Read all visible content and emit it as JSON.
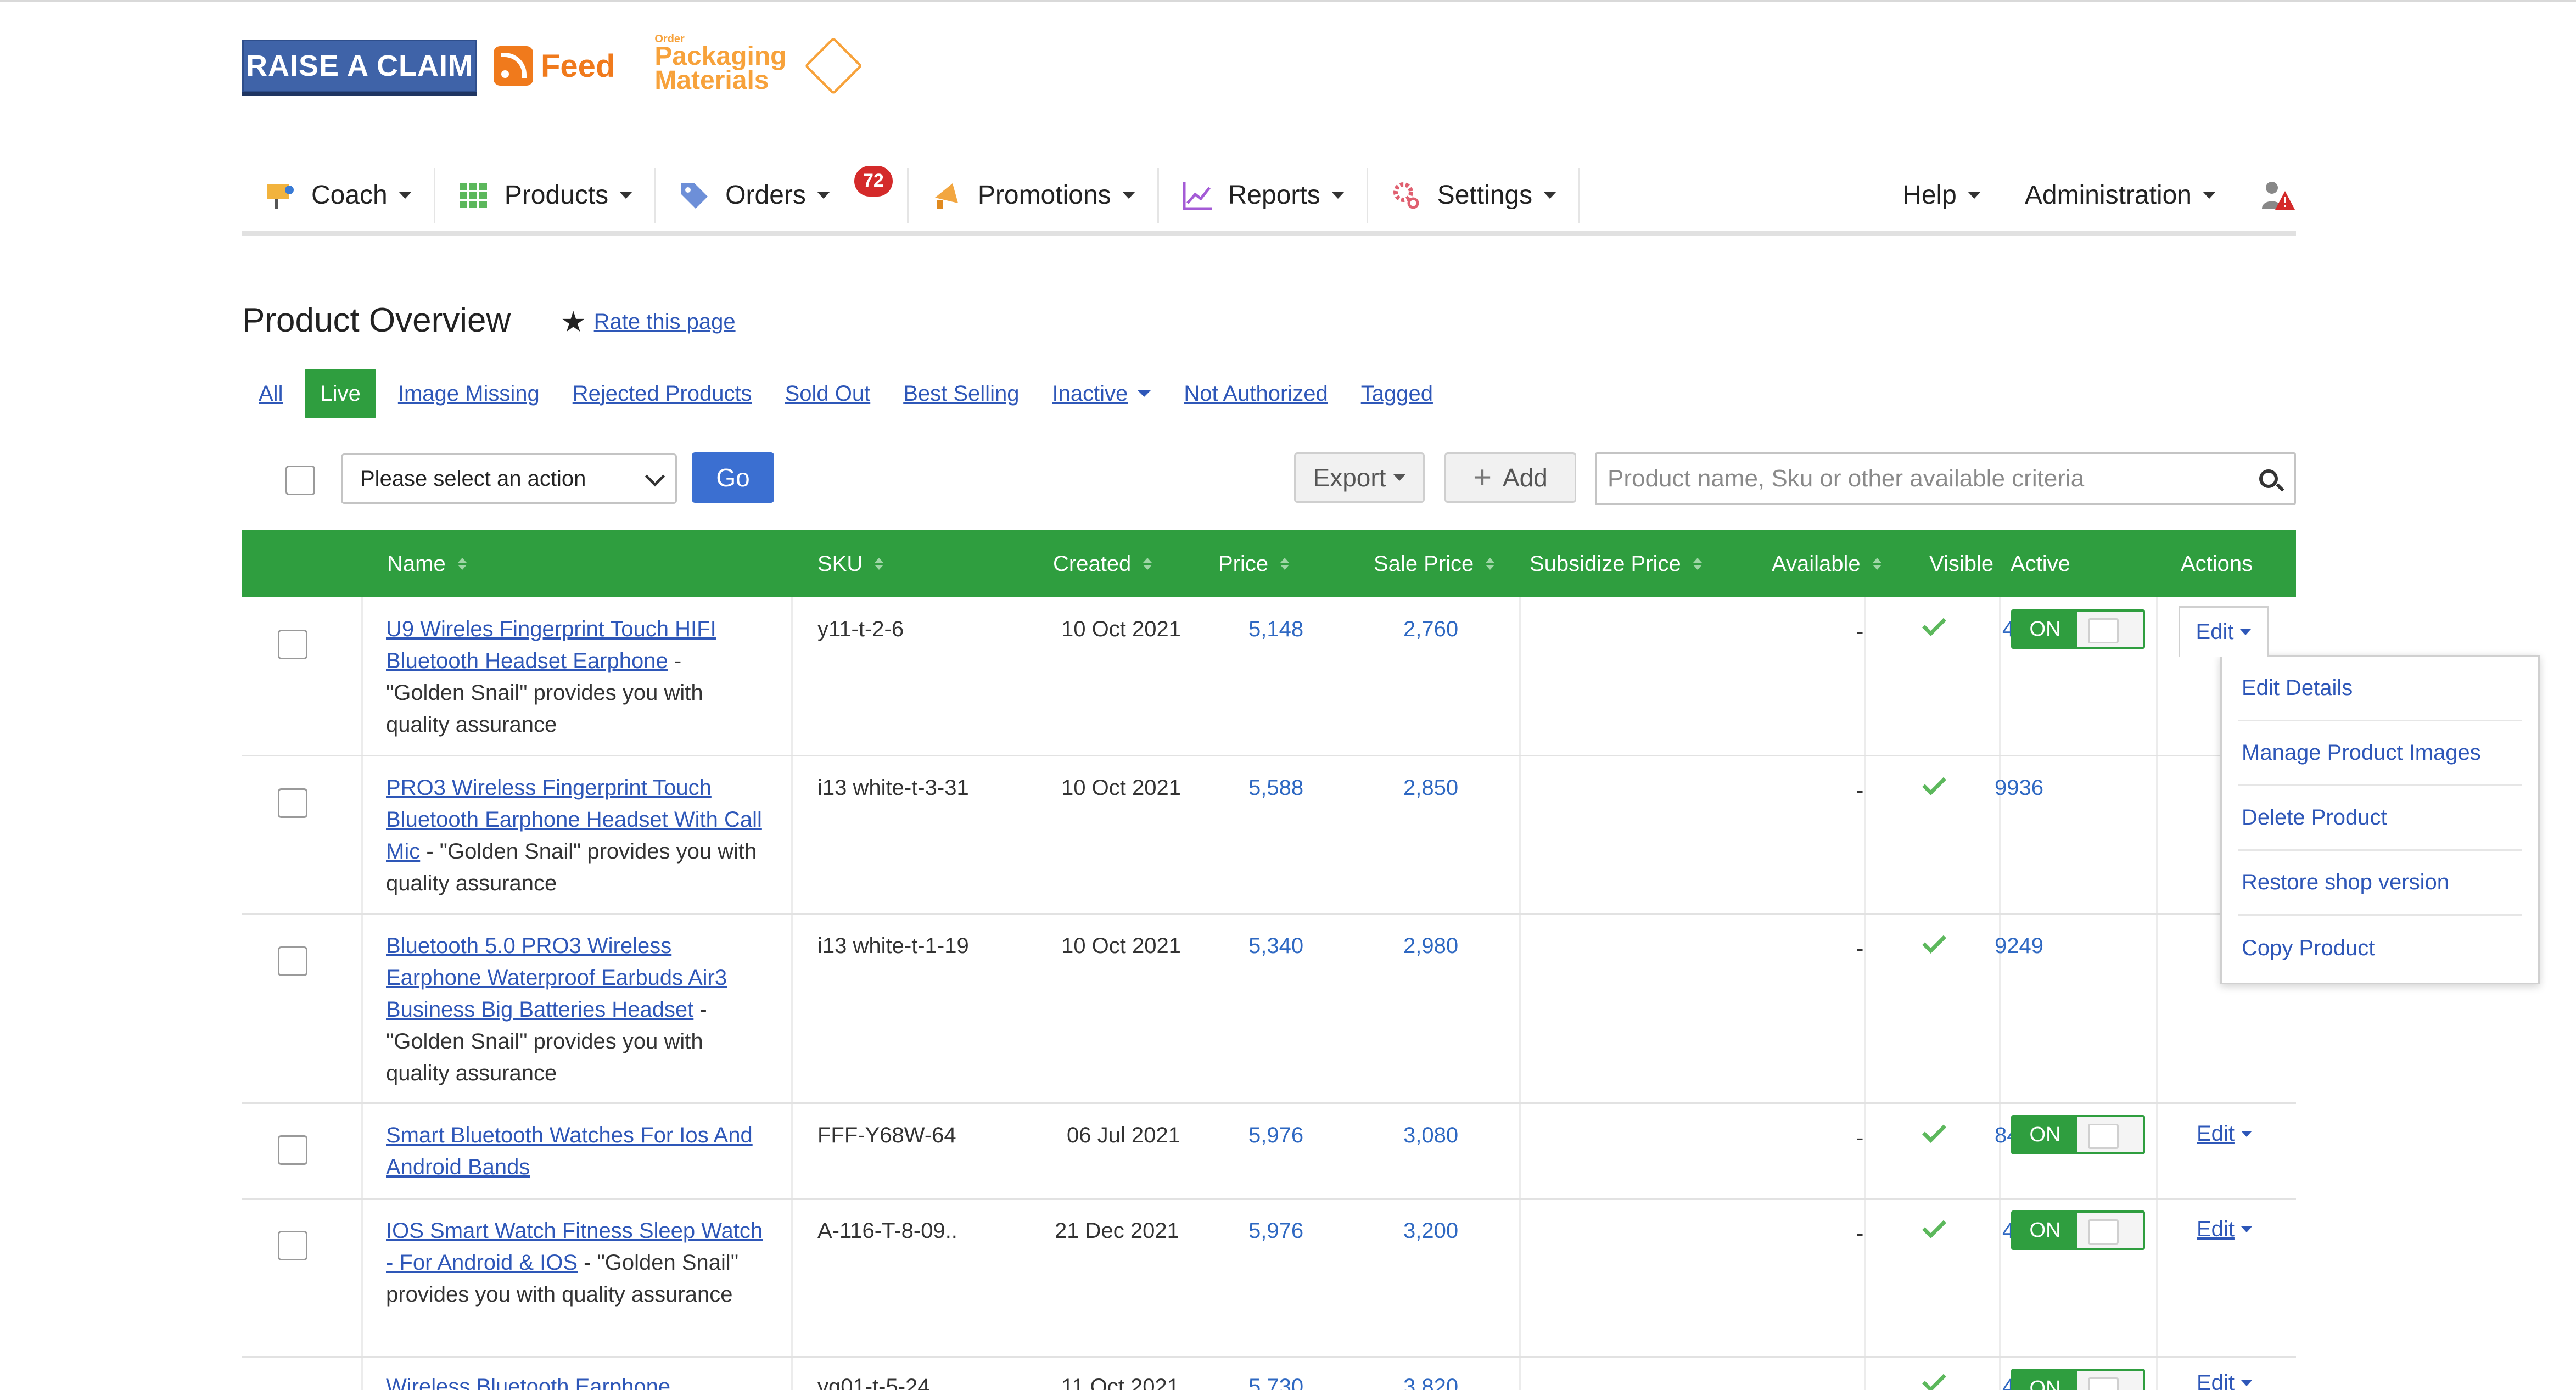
{
  "logos": {
    "raise_claim": "RAISE A CLAIM",
    "feed": "Feed",
    "packaging_small": "Order",
    "packaging": "Packaging Materials"
  },
  "nav": {
    "coach": "Coach",
    "products": "Products",
    "orders": "Orders",
    "orders_badge": "72",
    "promotions": "Promotions",
    "reports": "Reports",
    "settings": "Settings",
    "help": "Help",
    "administration": "Administration"
  },
  "page": {
    "title": "Product Overview",
    "rate": "Rate this page"
  },
  "filters": {
    "all": "All",
    "live": "Live",
    "image_missing": "Image Missing",
    "rejected": "Rejected Products",
    "sold_out": "Sold Out",
    "best_selling": "Best Selling",
    "inactive": "Inactive",
    "not_authorized": "Not Authorized",
    "tagged": "Tagged"
  },
  "toolbar": {
    "action_select": "Please select an action",
    "go": "Go",
    "export": "Export",
    "add": "Add",
    "search_placeholder": "Product name, Sku or other available criteria"
  },
  "table": {
    "headers": {
      "name": "Name",
      "sku": "SKU",
      "created": "Created",
      "price": "Price",
      "sale_price": "Sale Price",
      "subsidize_price": "Subsidize Price",
      "available": "Available",
      "visible": "Visible",
      "active": "Active",
      "actions": "Actions"
    },
    "rows": [
      {
        "link": "U9 Wireles Fingerprint Touch HIFI Bluetooth Headset Earphone",
        "desc": " - \"Golden Snail\" provides you with quality assurance",
        "sku": "y11-t-2-6",
        "created": "10 Oct 2021",
        "price": "5,148",
        "sale": "2,760",
        "subsidize": "-",
        "available": "467",
        "active": "ON",
        "edit": "Edit"
      },
      {
        "link": "PRO3 Wireless Fingerprint Touch Bluetooth Earphone Headset With Call Mic",
        "desc": " - \"Golden Snail\" provides you with quality assurance",
        "sku": "i13 white-t-3-31",
        "created": "10 Oct 2021",
        "price": "5,588",
        "sale": "2,850",
        "subsidize": "-",
        "available": "9936",
        "active": "ON",
        "edit": "Edit"
      },
      {
        "link": "Bluetooth 5.0 PRO3 Wireless Earphone Waterproof Earbuds Air3 Business Big Batteries Headset",
        "desc": " - \"Golden Snail\" provides you with quality assurance",
        "sku": "i13 white-t-1-19",
        "created": "10 Oct 2021",
        "price": "5,340",
        "sale": "2,980",
        "subsidize": "-",
        "available": "9249",
        "active": "ON",
        "edit": "Edit"
      },
      {
        "link": "Smart Bluetooth Watches For Ios And Android Bands",
        "desc": "",
        "sku": "FFF-Y68W-64",
        "created": "06 Jul 2021",
        "price": "5,976",
        "sale": "3,080",
        "subsidize": "-",
        "available": "8425",
        "active": "ON",
        "edit": "Edit"
      },
      {
        "link": "IOS Smart Watch Fitness Sleep Watch - For Android & IOS",
        "desc": " - \"Golden Snail\" provides you with quality assurance",
        "sku": "A-116-T-8-09..",
        "created": "21 Dec 2021",
        "price": "5,976",
        "sale": "3,200",
        "subsidize": "-",
        "available": "425",
        "active": "ON",
        "edit": "Edit"
      },
      {
        "link": "Wireless Bluetooth Earphone",
        "desc": "",
        "sku": "yq01-t-5-24",
        "created": "11 Oct 2021",
        "price": "5,730",
        "sale": "3,820",
        "subsidize": "-",
        "available": "496",
        "active": "ON",
        "edit": "Edit"
      }
    ]
  },
  "edit_menu": {
    "items": [
      "Edit Details",
      "Manage Product Images",
      "Delete Product",
      "Restore shop version",
      "Copy Product"
    ]
  },
  "colors": {
    "green": "#2f9e3f",
    "link_blue": "#2e57b8",
    "badge_red": "#d42a2a"
  }
}
